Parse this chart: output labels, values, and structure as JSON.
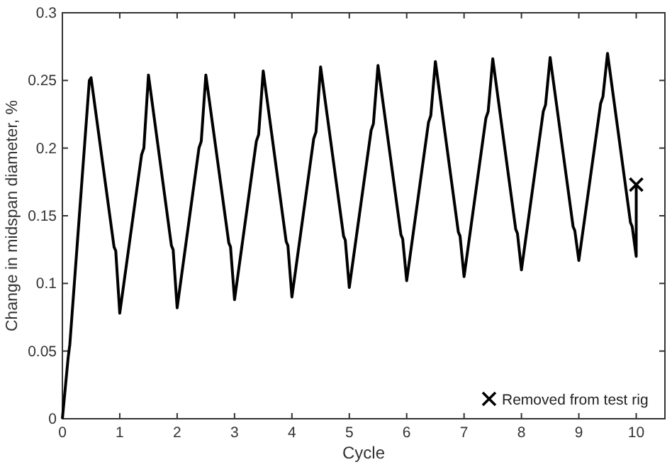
{
  "chart_data": {
    "type": "line",
    "xlabel": "Cycle",
    "ylabel": "Change in midspan diameter, %",
    "xlim": [
      0,
      10.5
    ],
    "ylim": [
      0,
      0.3
    ],
    "xticks": [
      0,
      1,
      2,
      3,
      4,
      5,
      6,
      7,
      8,
      9,
      10
    ],
    "yticks": [
      0,
      0.05,
      0.1,
      0.15,
      0.2,
      0.25,
      0.3
    ],
    "grid": false,
    "legend": "bottom right",
    "series": [
      {
        "color": "#000000",
        "marker": "none",
        "x": [
          0,
          0.1,
          0.13,
          0.47,
          0.5,
          0.9,
          0.93,
          1,
          1.38,
          1.42,
          1.5,
          1.9,
          1.93,
          2,
          2.38,
          2.42,
          2.5,
          2.9,
          2.93,
          3,
          3.38,
          3.42,
          3.5,
          3.9,
          3.93,
          4,
          4.38,
          4.42,
          4.5,
          4.9,
          4.93,
          5,
          5.38,
          5.42,
          5.5,
          5.9,
          5.93,
          6,
          6.38,
          6.42,
          6.5,
          6.9,
          6.93,
          7,
          7.38,
          7.42,
          7.5,
          7.9,
          7.93,
          8,
          8.38,
          8.42,
          8.5,
          8.9,
          8.93,
          9,
          9.38,
          9.42,
          9.5,
          9.9,
          9.93,
          10,
          10
        ],
        "values": [
          0,
          0.045,
          0.055,
          0.25,
          0.252,
          0.127,
          0.124,
          0.078,
          0.195,
          0.2,
          0.254,
          0.128,
          0.125,
          0.082,
          0.2,
          0.205,
          0.254,
          0.13,
          0.127,
          0.088,
          0.205,
          0.21,
          0.257,
          0.131,
          0.128,
          0.09,
          0.207,
          0.212,
          0.26,
          0.135,
          0.132,
          0.097,
          0.213,
          0.218,
          0.261,
          0.136,
          0.133,
          0.102,
          0.219,
          0.224,
          0.264,
          0.138,
          0.135,
          0.105,
          0.222,
          0.227,
          0.266,
          0.14,
          0.137,
          0.11,
          0.227,
          0.232,
          0.267,
          0.142,
          0.139,
          0.117,
          0.233,
          0.238,
          0.27,
          0.145,
          0.142,
          0.12,
          0.173
        ]
      },
      {
        "type": "scatter",
        "name": "Removed from test rig",
        "color": "#000000",
        "marker": "cross",
        "x": [
          10
        ],
        "values": [
          0.173
        ]
      }
    ]
  }
}
